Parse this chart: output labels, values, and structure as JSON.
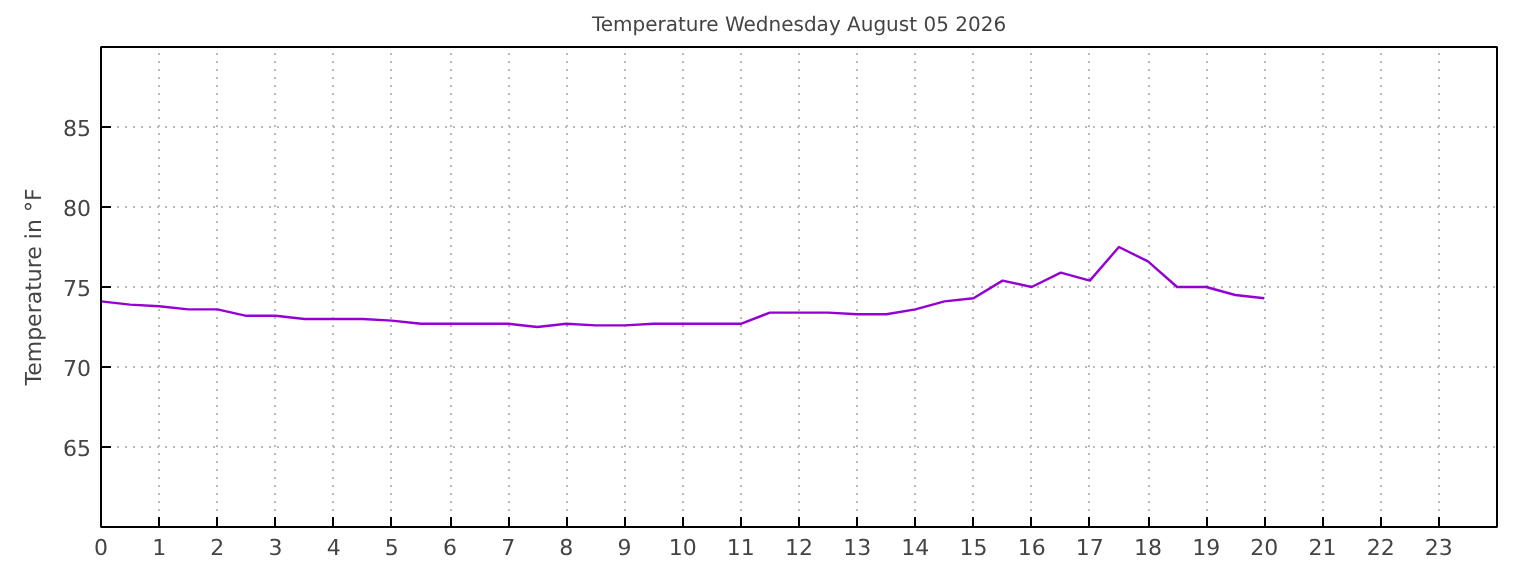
{
  "chart_data": {
    "type": "line",
    "title": "Temperature Wednesday August 05 2026",
    "ylabel": "Temperature in °F",
    "x": [
      0,
      0.5,
      1,
      1.5,
      2,
      2.5,
      3,
      3.5,
      4,
      4.5,
      5,
      5.5,
      6,
      6.5,
      7,
      7.5,
      8,
      8.5,
      9,
      9.5,
      10,
      10.5,
      11,
      11.5,
      12,
      12.5,
      13,
      13.5,
      14,
      14.5,
      15,
      15.5,
      16,
      16.5,
      17,
      17.5,
      18,
      18.5,
      19,
      19.5,
      20
    ],
    "series": [
      {
        "color": "#9400d3",
        "values": [
          74.1,
          73.9,
          73.8,
          73.6,
          73.6,
          73.2,
          73.2,
          73.0,
          73.0,
          73.0,
          72.9,
          72.7,
          72.7,
          72.7,
          72.7,
          72.5,
          72.7,
          72.6,
          72.6,
          72.7,
          72.7,
          72.7,
          72.7,
          73.4,
          73.4,
          73.4,
          73.3,
          73.3,
          73.6,
          74.1,
          74.3,
          75.4,
          75.0,
          75.9,
          75.4,
          77.5,
          76.6,
          75.0,
          75.0,
          74.5,
          74.3
        ]
      }
    ],
    "xlim": [
      0,
      24
    ],
    "xticks": [
      0,
      1,
      2,
      3,
      4,
      5,
      6,
      7,
      8,
      9,
      10,
      11,
      12,
      13,
      14,
      15,
      16,
      17,
      18,
      19,
      20,
      21,
      22,
      23
    ],
    "ylim": [
      60,
      90
    ],
    "yticks": [
      65,
      70,
      75,
      80,
      85
    ],
    "grid": true,
    "line_style": "solid",
    "marker": "none"
  }
}
